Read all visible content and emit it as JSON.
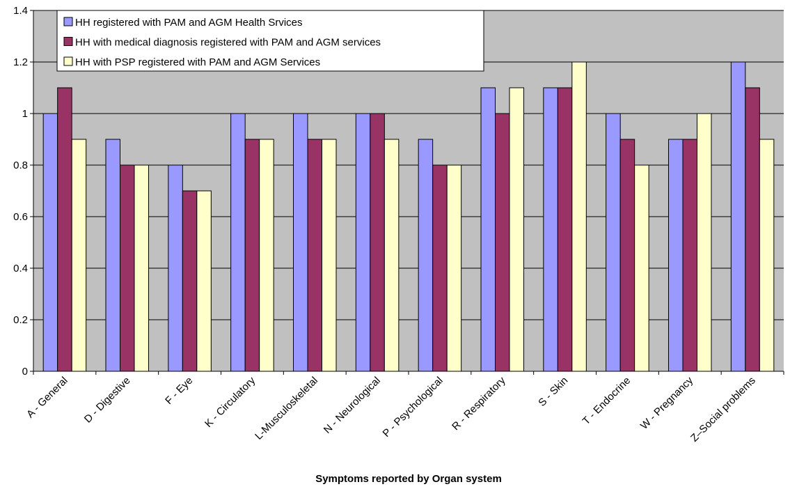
{
  "chart_data": {
    "type": "bar",
    "categories": [
      "A - General",
      "D - Digestive",
      "F - Eye",
      "K - Circulatory",
      "L-Musculoskeletal",
      "N - Neurological",
      "P - Psychological",
      "R - Respiratory",
      "S - Skin",
      "T - Endocrine",
      "W - Pregnancy",
      "Z–Social problems"
    ],
    "series": [
      {
        "name": "HH registered with PAM and AGM Health Srvices",
        "color": "#9999ff",
        "values": [
          1.0,
          0.9,
          0.8,
          1.0,
          1.0,
          1.0,
          0.9,
          1.1,
          1.1,
          1.0,
          0.9,
          1.2
        ]
      },
      {
        "name": "HH with medical diagnosis registered with PAM and AGM services",
        "color": "#993366",
        "values": [
          1.1,
          0.8,
          0.7,
          0.9,
          0.9,
          1.0,
          0.8,
          1.0,
          1.1,
          0.9,
          0.9,
          1.1
        ]
      },
      {
        "name": "HH with PSP registered with PAM and AGM Services",
        "color": "#ffffcc",
        "values": [
          0.9,
          0.8,
          0.7,
          0.9,
          0.9,
          0.9,
          0.8,
          1.1,
          1.2,
          0.8,
          1.0,
          0.9
        ]
      }
    ],
    "title": "",
    "xlabel": "Symptoms reported by Organ system",
    "ylabel": "",
    "ylim": [
      0,
      1.4
    ],
    "yticks": [
      "0",
      "0.2",
      "0.4",
      "0.6",
      "0.8",
      "1",
      "1.2",
      "1.4"
    ],
    "grid": true,
    "legend_position": "top-left",
    "plot_background": "#c0c0c0"
  }
}
